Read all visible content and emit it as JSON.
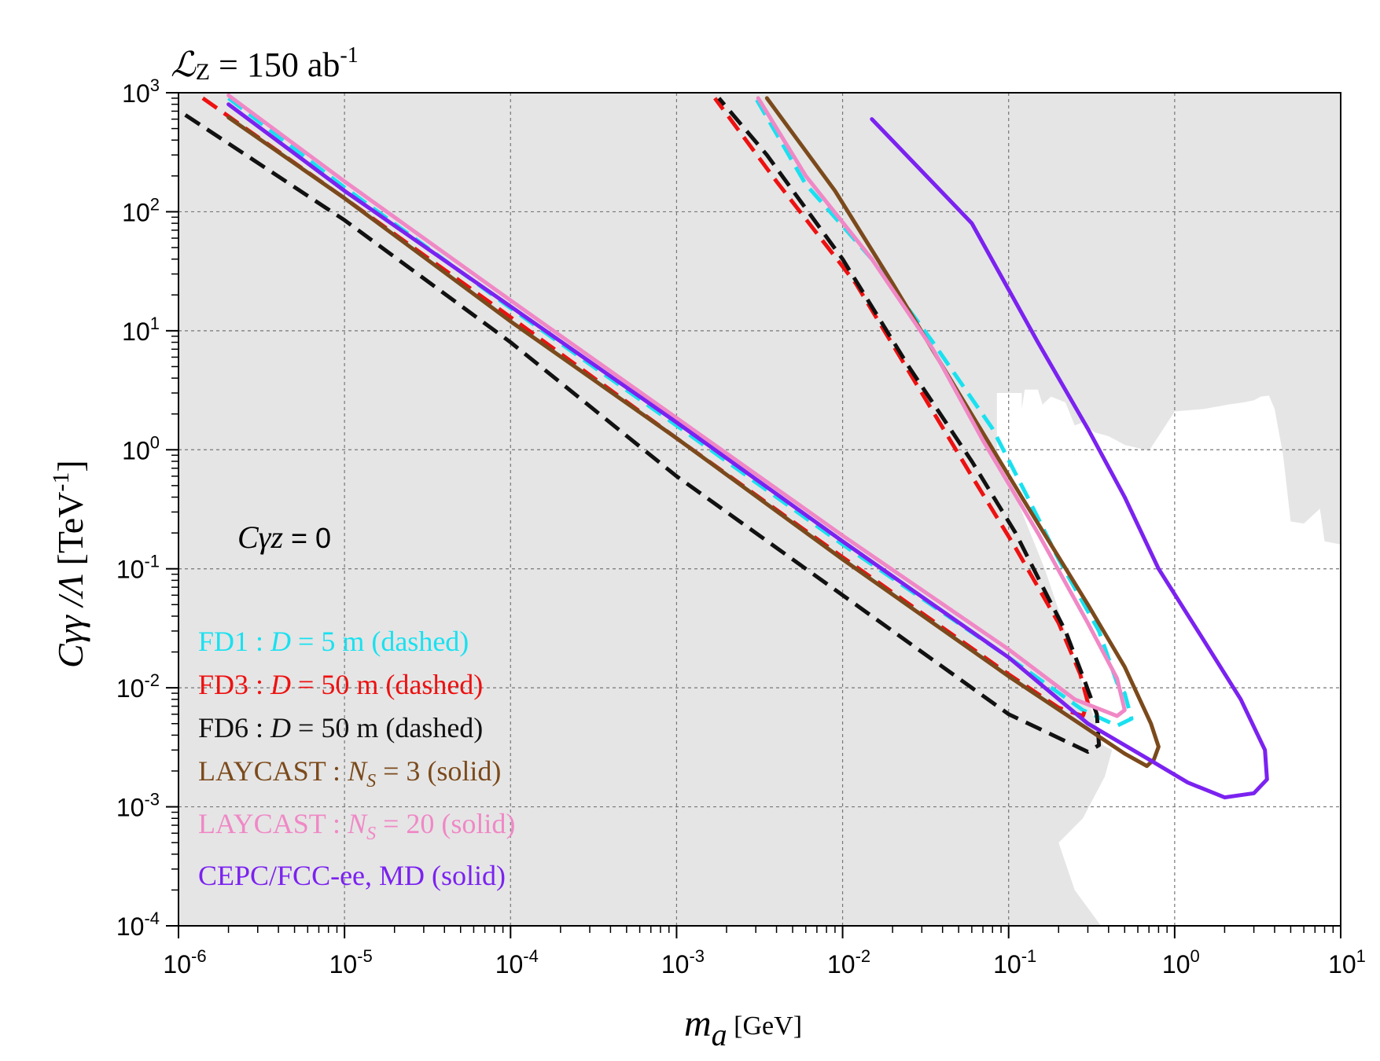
{
  "chart_data": {
    "type": "line",
    "title": "",
    "luminosity_label": {
      "L": "ℒ",
      "sub": "Z",
      "eq": " = 150 ab",
      "sup": "-1"
    },
    "xlabel": {
      "main": "m",
      "sub": "a",
      "unit": " [GeV]"
    },
    "ylabel": {
      "main": "Cγγ /Λ",
      "unit": " [TeV",
      "sup": "-1",
      "close": "]"
    },
    "x_scale": "log",
    "y_scale": "log",
    "xlim": [
      1e-06,
      10
    ],
    "ylim": [
      0.0001,
      1000
    ],
    "x_tick_exponents": [
      -6,
      -5,
      -4,
      -3,
      -2,
      -1,
      0,
      1
    ],
    "y_tick_exponents": [
      -4,
      -3,
      -2,
      -1,
      0,
      1,
      2,
      3
    ],
    "tick_base": "10",
    "grid": true,
    "annotation": {
      "var": "Cγz",
      "rest": " = 0"
    },
    "excluded_region": {
      "fill": "#e5e5e5",
      "allowed_window": [
        [
          0.085,
          3.0
        ],
        [
          0.12,
          3.0
        ],
        [
          0.12,
          2.2
        ],
        [
          0.125,
          3.2
        ],
        [
          0.15,
          3.2
        ],
        [
          0.16,
          2.4
        ],
        [
          0.18,
          2.8
        ],
        [
          0.22,
          2.5
        ],
        [
          0.25,
          1.6
        ],
        [
          0.28,
          1.7
        ],
        [
          0.31,
          1.5
        ],
        [
          0.33,
          1.4
        ],
        [
          0.4,
          1.3
        ],
        [
          0.5,
          1.1
        ],
        [
          0.7,
          0.98
        ],
        [
          1.0,
          2.1
        ],
        [
          1.5,
          2.2
        ],
        [
          2.1,
          2.4
        ],
        [
          2.6,
          2.5
        ],
        [
          3.0,
          2.6
        ],
        [
          3.3,
          2.8
        ],
        [
          3.7,
          2.85
        ],
        [
          4.0,
          2.2
        ],
        [
          4.5,
          0.9
        ],
        [
          5.0,
          0.25
        ],
        [
          6.0,
          0.24
        ],
        [
          7.5,
          0.32
        ],
        [
          8.0,
          0.17
        ],
        [
          10.0,
          0.16
        ],
        [
          10.0,
          0.0001
        ],
        [
          0.36,
          0.0001
        ],
        [
          0.25,
          0.0002
        ],
        [
          0.2,
          0.0005
        ],
        [
          0.28,
          0.0008
        ],
        [
          0.38,
          0.0018
        ],
        [
          0.42,
          0.003
        ],
        [
          0.37,
          0.0033
        ],
        [
          0.3,
          0.008
        ],
        [
          0.24,
          0.02
        ],
        [
          0.2,
          0.045
        ],
        [
          0.165,
          0.1
        ],
        [
          0.135,
          0.2
        ],
        [
          0.115,
          0.35
        ],
        [
          0.092,
          0.6
        ],
        [
          0.085,
          1.0
        ]
      ]
    },
    "series": [
      {
        "name": "FD1",
        "label_pre": "FD1 : ",
        "label_var": "D",
        "label_post": " = 5 m (dashed)",
        "color": "#19e1f0",
        "style": "dashed",
        "width": 5,
        "points": [
          [
            2e-06,
            900
          ],
          [
            1e-05,
            160
          ],
          [
            0.0001,
            15.5
          ],
          [
            0.001,
            1.6
          ],
          [
            0.01,
            0.16
          ],
          [
            0.1,
            0.018
          ],
          [
            0.28,
            0.0065
          ],
          [
            0.45,
            0.0048
          ],
          [
            0.55,
            0.0055
          ],
          [
            0.5,
            0.009
          ],
          [
            0.45,
            0.011
          ],
          [
            0.35,
            0.03
          ],
          [
            0.2,
            0.12
          ],
          [
            0.13,
            0.4
          ],
          [
            0.08,
            1.5
          ],
          [
            0.035,
            8
          ],
          [
            0.015,
            40
          ],
          [
            0.006,
            170
          ],
          [
            0.003,
            900
          ]
        ]
      },
      {
        "name": "FD3",
        "label_pre": "FD3 : ",
        "label_var": "D",
        "label_post": " = 50 m (dashed)",
        "color": "#ee1111",
        "style": "dashed",
        "width": 5,
        "points": [
          [
            1.4e-06,
            900
          ],
          [
            1e-05,
            130
          ],
          [
            0.0001,
            13
          ],
          [
            0.001,
            1.25
          ],
          [
            0.01,
            0.125
          ],
          [
            0.1,
            0.013
          ],
          [
            0.2,
            0.0068
          ],
          [
            0.28,
            0.0058
          ],
          [
            0.3,
            0.0075
          ],
          [
            0.27,
            0.013
          ],
          [
            0.2,
            0.035
          ],
          [
            0.11,
            0.15
          ],
          [
            0.06,
            0.6
          ],
          [
            0.03,
            3
          ],
          [
            0.012,
            25
          ],
          [
            0.004,
            180
          ],
          [
            0.0017,
            900
          ]
        ]
      },
      {
        "name": "FD6",
        "label_pre": "FD6 : ",
        "label_var": "D",
        "label_post": " = 50 m (dashed)",
        "color": "#111111",
        "style": "dashed",
        "width": 5,
        "points": [
          [
            1.1e-06,
            650
          ],
          [
            1e-05,
            85
          ],
          [
            0.0001,
            8
          ],
          [
            0.001,
            0.6
          ],
          [
            0.01,
            0.06
          ],
          [
            0.1,
            0.006
          ],
          [
            0.3,
            0.0029
          ],
          [
            0.35,
            0.0033
          ],
          [
            0.34,
            0.006
          ],
          [
            0.29,
            0.011
          ],
          [
            0.22,
            0.03
          ],
          [
            0.17,
            0.06
          ],
          [
            0.11,
            0.2
          ],
          [
            0.06,
            0.8
          ],
          [
            0.025,
            5
          ],
          [
            0.01,
            40
          ],
          [
            0.0035,
            300
          ],
          [
            0.0018,
            900
          ]
        ]
      },
      {
        "name": "LAYCAST_NS3",
        "label_pre": "LAYCAST : ",
        "label_var": "N",
        "label_sub": "S",
        "label_post": " = 3 (solid)",
        "color": "#7b4a1c",
        "style": "solid",
        "width": 5,
        "points": [
          [
            2e-06,
            620
          ],
          [
            1e-05,
            130
          ],
          [
            0.0001,
            12
          ],
          [
            0.001,
            1.25
          ],
          [
            0.01,
            0.12
          ],
          [
            0.1,
            0.0125
          ],
          [
            0.3,
            0.0045
          ],
          [
            0.5,
            0.0028
          ],
          [
            0.68,
            0.0022
          ],
          [
            0.75,
            0.0025
          ],
          [
            0.8,
            0.0032
          ],
          [
            0.72,
            0.005
          ],
          [
            0.5,
            0.015
          ],
          [
            0.3,
            0.05
          ],
          [
            0.12,
            0.4
          ],
          [
            0.05,
            3
          ],
          [
            0.02,
            25
          ],
          [
            0.009,
            150
          ],
          [
            0.0035,
            900
          ]
        ]
      },
      {
        "name": "LAYCAST_NS20",
        "label_pre": "LAYCAST : ",
        "label_var": "N",
        "label_sub": "S",
        "label_post": " = 20 (solid)",
        "color": "#f088c6",
        "style": "solid",
        "width": 5,
        "points": [
          [
            2e-06,
            950
          ],
          [
            1e-05,
            180
          ],
          [
            0.0001,
            18
          ],
          [
            0.001,
            1.85
          ],
          [
            0.01,
            0.19
          ],
          [
            0.1,
            0.021
          ],
          [
            0.25,
            0.008
          ],
          [
            0.45,
            0.0058
          ],
          [
            0.5,
            0.0065
          ],
          [
            0.45,
            0.012
          ],
          [
            0.3,
            0.035
          ],
          [
            0.15,
            0.2
          ],
          [
            0.07,
            1.2
          ],
          [
            0.035,
            7
          ],
          [
            0.015,
            40
          ],
          [
            0.006,
            200
          ],
          [
            0.0031,
            900
          ]
        ]
      },
      {
        "name": "CEPC_FCCee_MD",
        "label_pre": "CEPC/FCC-ee, MD (solid)",
        "color": "#7b22f0",
        "style": "solid",
        "width": 5,
        "points": [
          [
            2e-06,
            800
          ],
          [
            1e-05,
            150
          ],
          [
            0.0001,
            16
          ],
          [
            0.001,
            1.7
          ],
          [
            0.01,
            0.17
          ],
          [
            0.1,
            0.018
          ],
          [
            0.3,
            0.005
          ],
          [
            0.7,
            0.0025
          ],
          [
            1.2,
            0.0016
          ],
          [
            2,
            0.0012
          ],
          [
            3,
            0.0013
          ],
          [
            3.6,
            0.0017
          ],
          [
            3.5,
            0.003
          ],
          [
            2.5,
            0.008
          ],
          [
            1.5,
            0.025
          ],
          [
            0.8,
            0.1
          ],
          [
            0.5,
            0.4
          ],
          [
            0.3,
            1.5
          ],
          [
            0.15,
            8
          ],
          [
            0.06,
            80
          ],
          [
            0.015,
            600
          ]
        ]
      }
    ]
  }
}
